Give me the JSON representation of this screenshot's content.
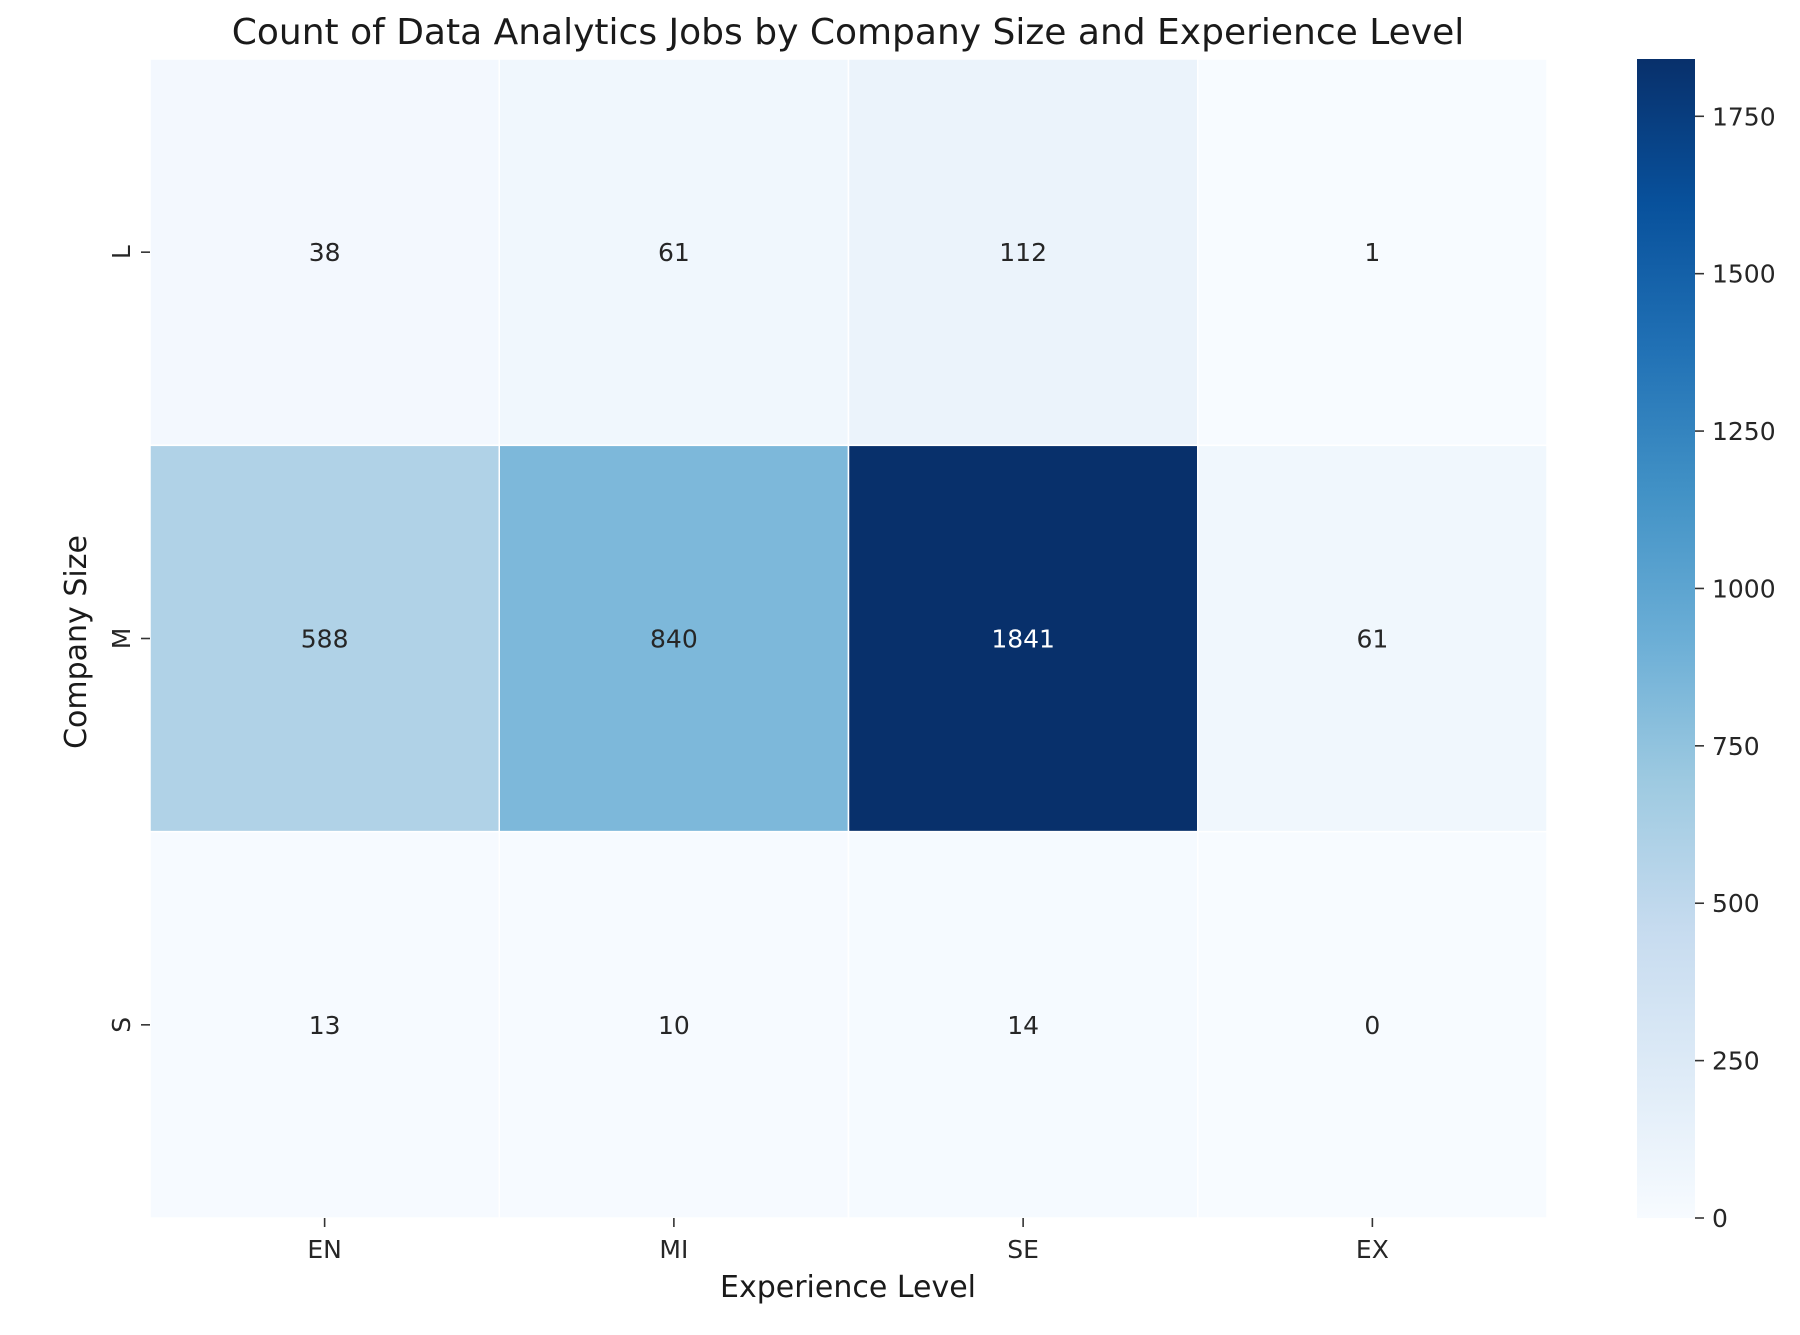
{
  "chart_data": {
    "type": "heatmap",
    "title": "Count of Data Analytics Jobs by Company Size and Experience Level",
    "xlabel": "Experience Level",
    "ylabel": "Company Size",
    "x_categories": [
      "EN",
      "MI",
      "SE",
      "EX"
    ],
    "y_categories": [
      "L",
      "M",
      "S"
    ],
    "values": [
      [
        38,
        61,
        112,
        1
      ],
      [
        588,
        840,
        1841,
        61
      ],
      [
        13,
        10,
        14,
        0
      ]
    ],
    "colorbar": {
      "min": 0,
      "max": 1841,
      "ticks": [
        0,
        250,
        500,
        750,
        1000,
        1250,
        1500,
        1750
      ],
      "colormap": "Blues",
      "low_color": "#f7fbff",
      "high_color": "#08306b"
    },
    "grid_line_color": "#ffffff"
  }
}
